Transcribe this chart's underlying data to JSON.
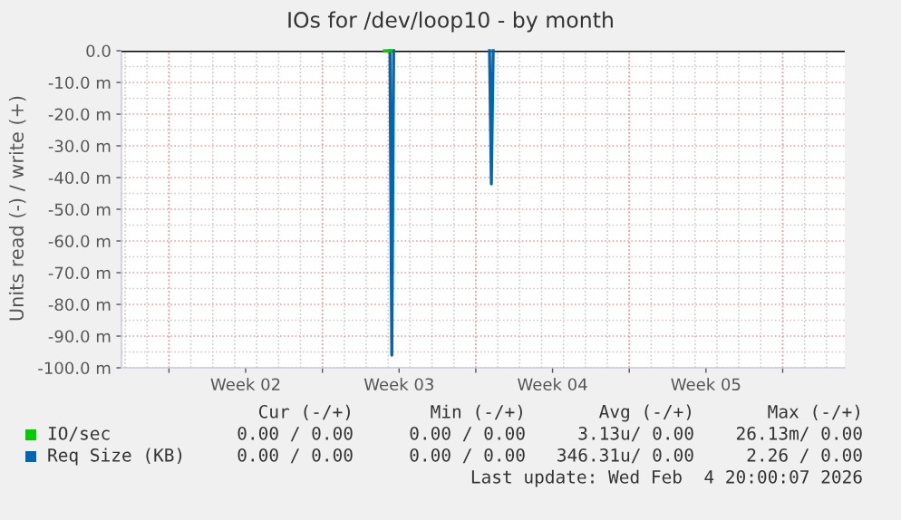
{
  "chart_data": {
    "type": "line",
    "title": "IOs for /dev/loop10 - by month",
    "ylabel": "Units read (-) / write (+)",
    "series": [
      {
        "name": "IO/sec",
        "color": "#00cc00",
        "x": [
          "2026-01-14T20:00",
          "2026-01-15T03:00"
        ],
        "values": [
          0,
          0
        ]
      },
      {
        "name": "Req Size (KB)",
        "color": "#0066b3",
        "x": [
          "2026-01-15T02:00",
          "2026-01-15T04:00",
          "2026-01-15T06:00",
          "2026-01-17T12:00",
          "2026-01-19T15:00",
          "2026-01-19T17:00",
          "2026-01-19T19:00"
        ],
        "values": [
          0,
          -96,
          0,
          null,
          0,
          -42,
          0
        ]
      }
    ],
    "xlim": [
      "2026-01-02T20:00",
      "2026-02-04T20:00"
    ],
    "xticks": [
      {
        "value": "2026-01-05",
        "label": null
      },
      {
        "value": "2026-01-08T12:00",
        "label": "Week 02"
      },
      {
        "value": "2026-01-12",
        "label": null
      },
      {
        "value": "2026-01-15T12:00",
        "label": "Week 03"
      },
      {
        "value": "2026-01-19",
        "label": null
      },
      {
        "value": "2026-01-22T12:00",
        "label": "Week 04"
      },
      {
        "value": "2026-01-26",
        "label": null
      },
      {
        "value": "2026-01-29T12:00",
        "label": "Week 05"
      },
      {
        "value": "2026-02-02",
        "label": null
      }
    ],
    "ylim": [
      -100,
      0
    ],
    "yticks": [
      {
        "value": -100,
        "label": "-100.0 m"
      },
      {
        "value": -90,
        "label": "-90.0 m"
      },
      {
        "value": -80,
        "label": "-80.0 m"
      },
      {
        "value": -70,
        "label": "-70.0 m"
      },
      {
        "value": -60,
        "label": "-60.0 m"
      },
      {
        "value": -50,
        "label": "-50.0 m"
      },
      {
        "value": -40,
        "label": "-40.0 m"
      },
      {
        "value": -30,
        "label": "-30.0 m"
      },
      {
        "value": -20,
        "label": "-20.0 m"
      },
      {
        "value": -10,
        "label": "-10.0 m"
      },
      {
        "value": 0,
        "label": "0.0"
      }
    ],
    "ref_lines": [
      {
        "axis": "y",
        "value": 0,
        "color": "#000000"
      }
    ],
    "grid": true,
    "legend": "bottom left",
    "annotations": [
      "Cur (-/+)",
      "Min (-/+)",
      "Avg (-/+)",
      "Max (-/+)",
      "0.00 / 0.00",
      "0.00 / 0.00",
      "3.13u/ 0.00",
      "26.13m/ 0.00",
      "0.00 / 0.00",
      "0.00 / 0.00",
      "346.31u/ 0.00",
      "2.26 / 0.00",
      "Last update: Wed Feb  4 20:00:07 2026"
    ]
  }
}
